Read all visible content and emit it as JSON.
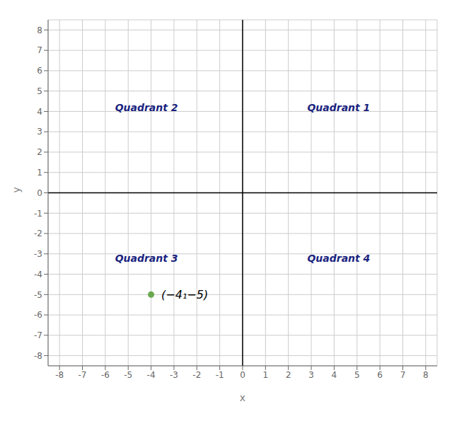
{
  "chart_data": {
    "type": "scatter",
    "x_label": "x",
    "y_label": "y",
    "x": [
      -4
    ],
    "values": [
      -5
    ],
    "value_labels": [
      "(−4₁−5)"
    ],
    "data_labels": true,
    "color": "#6aa84f",
    "marker": "circle",
    "xlim": [
      -8.5,
      8.5
    ],
    "ylim": [
      -8.5,
      8.5
    ],
    "xticks": [
      -8,
      -7,
      -6,
      -5,
      -4,
      -3,
      -2,
      -1,
      0,
      1,
      2,
      3,
      4,
      5,
      6,
      7,
      8
    ],
    "yticks": [
      -8,
      -7,
      -6,
      -5,
      -4,
      -3,
      -2,
      -1,
      0,
      1,
      2,
      3,
      4,
      5,
      6,
      7,
      8
    ],
    "grid": true,
    "annotations": [
      {
        "text": "Quadrant 1",
        "x": 4.2,
        "y": 4.2,
        "color": "#1a237e"
      },
      {
        "text": "Quadrant 2",
        "x": -4.2,
        "y": 4.2,
        "color": "#1a237e"
      },
      {
        "text": "Quadrant 3",
        "x": -4.2,
        "y": -3.2,
        "color": "#1a237e"
      },
      {
        "text": "Quadrant 4",
        "x": 4.2,
        "y": -3.2,
        "color": "#1a237e"
      }
    ]
  }
}
